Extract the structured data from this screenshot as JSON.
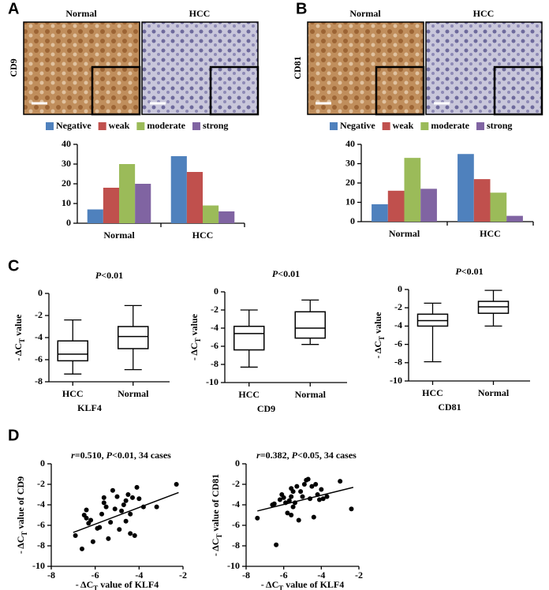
{
  "panel_labels": [
    "A",
    "B",
    "C",
    "D"
  ],
  "chart_data": [
    {
      "type": "bar",
      "stain_marker": "CD9",
      "stain_labels": [
        "Normal",
        "HCC"
      ],
      "categories": [
        "Normal",
        "HCC"
      ],
      "series": [
        {
          "name": "Negative",
          "color": "#4f81bd",
          "values": [
            7,
            34
          ]
        },
        {
          "name": "weak",
          "color": "#c0504d",
          "values": [
            18,
            26
          ]
        },
        {
          "name": "moderate",
          "color": "#9bbb59",
          "values": [
            30,
            9
          ]
        },
        {
          "name": "strong",
          "color": "#8064a2",
          "values": [
            20,
            6
          ]
        }
      ],
      "ylim": [
        0,
        40
      ],
      "yticks": [
        0,
        10,
        20,
        30,
        40
      ]
    },
    {
      "type": "bar",
      "stain_marker": "CD81",
      "stain_labels": [
        "Normal",
        "HCC"
      ],
      "categories": [
        "Normal",
        "HCC"
      ],
      "series": [
        {
          "name": "Negative",
          "color": "#4f81bd",
          "values": [
            9,
            35
          ]
        },
        {
          "name": "weak",
          "color": "#c0504d",
          "values": [
            16,
            22
          ]
        },
        {
          "name": "moderate",
          "color": "#9bbb59",
          "values": [
            33,
            15
          ]
        },
        {
          "name": "strong",
          "color": "#8064a2",
          "values": [
            17,
            3
          ]
        }
      ],
      "ylim": [
        0,
        40
      ],
      "yticks": [
        0,
        10,
        20,
        30,
        40
      ]
    },
    {
      "type": "box",
      "title": [
        "P",
        "<0.01"
      ],
      "ylabel": [
        "- ΔC",
        "T",
        " value"
      ],
      "xlabel": "KLF4",
      "categories": [
        "HCC",
        "Normal"
      ],
      "boxes": [
        {
          "min": -7.3,
          "q1": -6.1,
          "median": -5.5,
          "q3": -4.3,
          "max": -2.4
        },
        {
          "min": -6.9,
          "q1": -5.0,
          "median": -3.9,
          "q3": -3.0,
          "max": -1.1
        }
      ],
      "ylim": [
        -8,
        0
      ],
      "yticks": [
        -8,
        -6,
        -4,
        -2,
        0
      ]
    },
    {
      "type": "box",
      "title": [
        "P",
        "<0.01"
      ],
      "ylabel": [
        "- ΔC",
        "T",
        " value"
      ],
      "xlabel": "CD9",
      "categories": [
        "HCC",
        "Normal"
      ],
      "boxes": [
        {
          "min": -8.3,
          "q1": -6.4,
          "median": -4.6,
          "q3": -3.8,
          "max": -2.0
        },
        {
          "min": -5.8,
          "q1": -5.1,
          "median": -4.0,
          "q3": -2.2,
          "max": -0.9
        }
      ],
      "ylim": [
        -10,
        0
      ],
      "yticks": [
        -10,
        -8,
        -6,
        -4,
        -2,
        0
      ]
    },
    {
      "type": "box",
      "title": [
        "P",
        "<0.01"
      ],
      "ylabel": [
        "- ΔC",
        "T",
        " value"
      ],
      "xlabel": "CD81",
      "categories": [
        "HCC",
        "Normal"
      ],
      "boxes": [
        {
          "min": -7.9,
          "q1": -4.0,
          "median": -3.4,
          "q3": -2.7,
          "max": -1.5
        },
        {
          "min": -4.0,
          "q1": -2.6,
          "median": -1.9,
          "q3": -1.3,
          "max": -0.1
        }
      ],
      "ylim": [
        -10,
        0
      ],
      "yticks": [
        -10,
        -8,
        -6,
        -4,
        -2,
        0
      ]
    },
    {
      "type": "scatter",
      "title": [
        "r",
        "=0.510, ",
        "P",
        "<0.01, 34 cases"
      ],
      "ylabel": [
        "- ΔC",
        "T",
        " value of CD9"
      ],
      "xlabel": [
        "- ΔC",
        "T",
        " value of KLF4"
      ],
      "x": [
        -6.9,
        -6.6,
        -6.5,
        -6.4,
        -6.4,
        -6.3,
        -6.2,
        -6.1,
        -5.9,
        -5.8,
        -5.7,
        -5.6,
        -5.6,
        -5.5,
        -5.4,
        -5.3,
        -5.2,
        -5.1,
        -5.0,
        -4.9,
        -4.8,
        -4.7,
        -4.6,
        -4.6,
        -4.5,
        -4.4,
        -4.3,
        -4.2,
        -4.1,
        -4.0,
        -3.8,
        -3.2,
        -2.3,
        -4.4
      ],
      "y": [
        -7.0,
        -8.3,
        -5.0,
        -4.5,
        -5.3,
        -5.8,
        -5.5,
        -7.6,
        -6.3,
        -6.2,
        -4.9,
        -3.3,
        -3.8,
        -4.2,
        -7.3,
        -5.7,
        -2.6,
        -4.4,
        -3.2,
        -6.4,
        -4.6,
        -4.0,
        -5.6,
        -3.6,
        -3.0,
        -4.9,
        -3.3,
        -7.0,
        -2.3,
        -3.4,
        -4.2,
        -4.2,
        -2.0,
        -6.8
      ],
      "trendline": {
        "x": [
          -7.0,
          -2.2
        ],
        "y": [
          -6.7,
          -2.8
        ]
      },
      "xlim": [
        -8,
        -2
      ],
      "xticks": [
        -8,
        -6,
        -4,
        -2
      ],
      "ylim": [
        -10,
        0
      ],
      "yticks": [
        -10,
        -8,
        -6,
        -4,
        -2,
        0
      ]
    },
    {
      "type": "scatter",
      "title": [
        "r",
        "=0.382, ",
        "P",
        "<0.05, 34 cases"
      ],
      "ylabel": [
        "- ΔC",
        "T",
        " value of CD81"
      ],
      "xlabel": [
        "- ΔC",
        "T",
        " value of KLF4"
      ],
      "x": [
        -7.4,
        -6.6,
        -6.5,
        -6.4,
        -6.2,
        -6.1,
        -6.0,
        -5.9,
        -5.8,
        -5.7,
        -5.6,
        -5.6,
        -5.5,
        -5.5,
        -5.4,
        -5.3,
        -5.2,
        -5.1,
        -5.0,
        -4.9,
        -4.8,
        -4.7,
        -4.6,
        -4.5,
        -4.4,
        -4.3,
        -4.2,
        -4.1,
        -4.0,
        -3.9,
        -3.7,
        -3.0,
        -2.4,
        -5.6
      ],
      "y": [
        -5.3,
        -4.0,
        -3.9,
        -7.9,
        -3.5,
        -3.0,
        -3.3,
        -3.8,
        -4.8,
        -3.6,
        -3.2,
        -2.4,
        -2.7,
        -4.2,
        -3.8,
        -2.2,
        -5.5,
        -2.7,
        -3.2,
        -2.0,
        -1.6,
        -1.5,
        -3.4,
        -2.2,
        -5.2,
        -2.0,
        -3.0,
        -3.5,
        -2.5,
        -3.4,
        -3.2,
        -1.7,
        -4.4,
        -5.0
      ],
      "trendline": {
        "x": [
          -7.4,
          -2.3
        ],
        "y": [
          -4.6,
          -2.3
        ]
      },
      "xlim": [
        -8,
        -2
      ],
      "xticks": [
        -8,
        -6,
        -4,
        -2
      ],
      "ylim": [
        -10,
        0
      ],
      "yticks": [
        -10,
        -8,
        -6,
        -4,
        -2,
        0
      ]
    }
  ]
}
